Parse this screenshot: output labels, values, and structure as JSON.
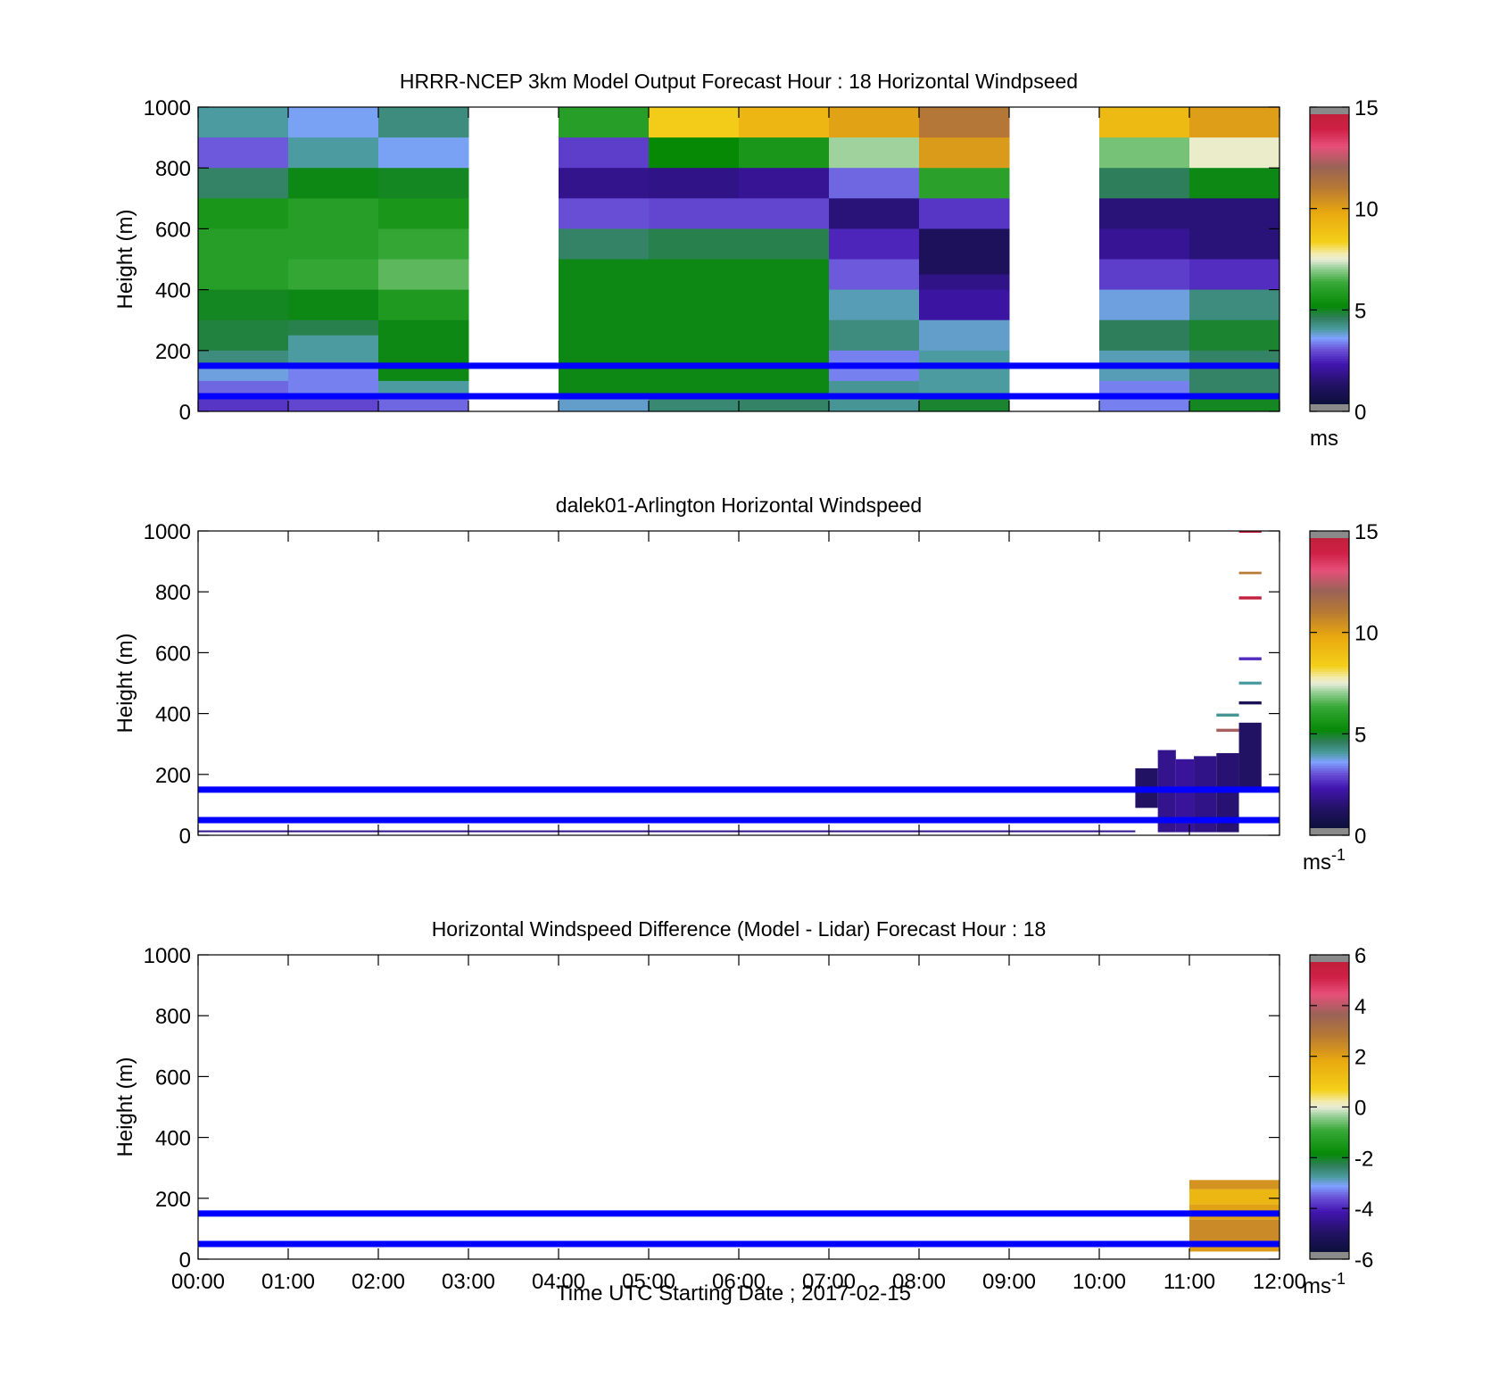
{
  "figure": {
    "xlabel": "Time UTC  Starting Date ; 2017-02-15",
    "time_ticks": [
      "00:00",
      "01:00",
      "02:00",
      "03:00",
      "04:00",
      "05:00",
      "06:00",
      "07:00",
      "08:00",
      "09:00",
      "10:00",
      "11:00",
      "12:00"
    ]
  },
  "chart_data": [
    {
      "type": "heatmap",
      "title": "HRRR-NCEP 3km Model Output   Forecast Hour : 18 Horizontal Windpseed",
      "ylabel": "Height (m)",
      "ylim": [
        0,
        1000
      ],
      "y_ticks": [
        0,
        200,
        400,
        600,
        800,
        1000
      ],
      "xlim_hours": [
        0,
        12
      ],
      "reference_heights_m": [
        150,
        50
      ],
      "reference_line_color": "#0000ff",
      "colorbar": {
        "min": 0,
        "max": 15,
        "ticks": [
          0,
          5,
          10,
          15
        ],
        "unit": "ms",
        "unit_sup": ""
      },
      "columns": [
        {
          "t0": 0,
          "t1": 1,
          "cells": [
            {
              "z0": 900,
              "z1": 1000,
              "v": 3.9
            },
            {
              "z0": 800,
              "z1": 900,
              "v": 2.9
            },
            {
              "z0": 700,
              "z1": 800,
              "v": 4.4
            },
            {
              "z0": 600,
              "z1": 700,
              "v": 5.6
            },
            {
              "z0": 400,
              "z1": 600,
              "v": 5.9
            },
            {
              "z0": 300,
              "z1": 400,
              "v": 4.9
            },
            {
              "z0": 200,
              "z1": 300,
              "v": 4.7
            },
            {
              "z0": 150,
              "z1": 200,
              "v": 4.2
            },
            {
              "z0": 100,
              "z1": 150,
              "v": 3.6
            },
            {
              "z0": 50,
              "z1": 100,
              "v": 3.0
            },
            {
              "z0": 0,
              "z1": 50,
              "v": 2.5
            }
          ]
        },
        {
          "t0": 1,
          "t1": 2,
          "cells": [
            {
              "z0": 900,
              "z1": 1000,
              "v": 3.5
            },
            {
              "z0": 800,
              "z1": 900,
              "v": 3.9
            },
            {
              "z0": 700,
              "z1": 800,
              "v": 5.0
            },
            {
              "z0": 500,
              "z1": 700,
              "v": 5.9
            },
            {
              "z0": 400,
              "z1": 500,
              "v": 6.2
            },
            {
              "z0": 300,
              "z1": 400,
              "v": 5.0
            },
            {
              "z0": 250,
              "z1": 300,
              "v": 4.6
            },
            {
              "z0": 150,
              "z1": 250,
              "v": 3.9
            },
            {
              "z0": 50,
              "z1": 150,
              "v": 3.2
            },
            {
              "z0": 0,
              "z1": 50,
              "v": 2.7
            }
          ]
        },
        {
          "t0": 2,
          "t1": 3,
          "cells": [
            {
              "z0": 900,
              "z1": 1000,
              "v": 4.2
            },
            {
              "z0": 800,
              "z1": 900,
              "v": 3.5
            },
            {
              "z0": 700,
              "z1": 800,
              "v": 4.9
            },
            {
              "z0": 600,
              "z1": 700,
              "v": 5.6
            },
            {
              "z0": 500,
              "z1": 600,
              "v": 6.2
            },
            {
              "z0": 400,
              "z1": 500,
              "v": 6.6
            },
            {
              "z0": 300,
              "z1": 400,
              "v": 5.7
            },
            {
              "z0": 100,
              "z1": 300,
              "v": 5.0
            },
            {
              "z0": 50,
              "z1": 100,
              "v": 3.9
            },
            {
              "z0": 0,
              "z1": 50,
              "v": 3.0
            }
          ]
        },
        {
          "t0": 3,
          "t1": 4,
          "cells": []
        },
        {
          "t0": 4,
          "t1": 5,
          "cells": [
            {
              "z0": 900,
              "z1": 1000,
              "v": 5.9
            },
            {
              "z0": 800,
              "z1": 900,
              "v": 2.6
            },
            {
              "z0": 700,
              "z1": 800,
              "v": 1.6
            },
            {
              "z0": 600,
              "z1": 700,
              "v": 2.8
            },
            {
              "z0": 500,
              "z1": 600,
              "v": 4.4
            },
            {
              "z0": 50,
              "z1": 500,
              "v": 5.0
            },
            {
              "z0": 0,
              "z1": 50,
              "v": 3.7
            }
          ]
        },
        {
          "t0": 5,
          "t1": 6,
          "cells": [
            {
              "z0": 900,
              "z1": 1000,
              "v": 8.6
            },
            {
              "z0": 800,
              "z1": 900,
              "v": 5.1
            },
            {
              "z0": 700,
              "z1": 800,
              "v": 1.5
            },
            {
              "z0": 600,
              "z1": 700,
              "v": 2.7
            },
            {
              "z0": 500,
              "z1": 600,
              "v": 4.6
            },
            {
              "z0": 50,
              "z1": 500,
              "v": 5.0
            },
            {
              "z0": 0,
              "z1": 50,
              "v": 4.3
            }
          ]
        },
        {
          "t0": 6,
          "t1": 7,
          "cells": [
            {
              "z0": 900,
              "z1": 1000,
              "v": 9.4
            },
            {
              "z0": 800,
              "z1": 900,
              "v": 5.6
            },
            {
              "z0": 700,
              "z1": 800,
              "v": 1.7
            },
            {
              "z0": 600,
              "z1": 700,
              "v": 2.7
            },
            {
              "z0": 500,
              "z1": 600,
              "v": 4.6
            },
            {
              "z0": 50,
              "z1": 500,
              "v": 5.0
            },
            {
              "z0": 0,
              "z1": 50,
              "v": 4.4
            }
          ]
        },
        {
          "t0": 7,
          "t1": 8,
          "cells": [
            {
              "z0": 900,
              "z1": 1000,
              "v": 10.1
            },
            {
              "z0": 800,
              "z1": 900,
              "v": 7.1
            },
            {
              "z0": 700,
              "z1": 800,
              "v": 3.0
            },
            {
              "z0": 600,
              "z1": 700,
              "v": 1.3
            },
            {
              "z0": 500,
              "z1": 600,
              "v": 2.3
            },
            {
              "z0": 400,
              "z1": 500,
              "v": 2.9
            },
            {
              "z0": 300,
              "z1": 400,
              "v": 3.8
            },
            {
              "z0": 200,
              "z1": 300,
              "v": 4.2
            },
            {
              "z0": 100,
              "z1": 200,
              "v": 3.2
            },
            {
              "z0": 0,
              "z1": 100,
              "v": 4.0
            }
          ]
        },
        {
          "t0": 8,
          "t1": 9,
          "cells": [
            {
              "z0": 900,
              "z1": 1000,
              "v": 11.3
            },
            {
              "z0": 800,
              "z1": 900,
              "v": 10.3
            },
            {
              "z0": 700,
              "z1": 800,
              "v": 6.0
            },
            {
              "z0": 600,
              "z1": 700,
              "v": 2.5
            },
            {
              "z0": 450,
              "z1": 600,
              "v": 0.8
            },
            {
              "z0": 400,
              "z1": 450,
              "v": 1.5
            },
            {
              "z0": 300,
              "z1": 400,
              "v": 1.9
            },
            {
              "z0": 200,
              "z1": 300,
              "v": 3.7
            },
            {
              "z0": 50,
              "z1": 200,
              "v": 3.9
            },
            {
              "z0": 0,
              "z1": 50,
              "v": 4.8
            }
          ]
        },
        {
          "t0": 9,
          "t1": 10,
          "cells": []
        },
        {
          "t0": 10,
          "t1": 11,
          "cells": [
            {
              "z0": 900,
              "z1": 1000,
              "v": 9.3
            },
            {
              "z0": 800,
              "z1": 900,
              "v": 6.8
            },
            {
              "z0": 700,
              "z1": 800,
              "v": 4.5
            },
            {
              "z0": 600,
              "z1": 700,
              "v": 1.3
            },
            {
              "z0": 500,
              "z1": 600,
              "v": 1.7
            },
            {
              "z0": 400,
              "z1": 500,
              "v": 2.6
            },
            {
              "z0": 300,
              "z1": 400,
              "v": 3.6
            },
            {
              "z0": 200,
              "z1": 300,
              "v": 4.5
            },
            {
              "z0": 100,
              "z1": 200,
              "v": 3.8
            },
            {
              "z0": 0,
              "z1": 100,
              "v": 3.2
            }
          ]
        },
        {
          "t0": 11,
          "t1": 12,
          "cells": [
            {
              "z0": 900,
              "z1": 1000,
              "v": 10.2
            },
            {
              "z0": 800,
              "z1": 900,
              "v": 7.6
            },
            {
              "z0": 700,
              "z1": 800,
              "v": 5.0
            },
            {
              "z0": 500,
              "z1": 700,
              "v": 1.3
            },
            {
              "z0": 400,
              "z1": 500,
              "v": 2.4
            },
            {
              "z0": 300,
              "z1": 400,
              "v": 4.2
            },
            {
              "z0": 200,
              "z1": 300,
              "v": 4.8
            },
            {
              "z0": 50,
              "z1": 200,
              "v": 4.4
            },
            {
              "z0": 0,
              "z1": 50,
              "v": 4.9
            }
          ]
        }
      ]
    },
    {
      "type": "heatmap",
      "title": "dalek01-Arlington  Horizontal Windspeed",
      "ylabel": "Height (m)",
      "ylim": [
        0,
        1000
      ],
      "y_ticks": [
        0,
        200,
        400,
        600,
        800,
        1000
      ],
      "xlim_hours": [
        0,
        12
      ],
      "reference_heights_m": [
        150,
        50
      ],
      "reference_line_color": "#0000ff",
      "colorbar": {
        "min": 0,
        "max": 15,
        "ticks": [
          0,
          5,
          10,
          15
        ],
        "unit": "ms",
        "unit_sup": "-1"
      },
      "cells": [
        {
          "t0": 0,
          "t1": 10.4,
          "z0": 10,
          "z1": 16,
          "v": 1.6
        },
        {
          "t0": 10.4,
          "t1": 10.65,
          "z0": 90,
          "z1": 220,
          "v": 1.0
        },
        {
          "t0": 10.65,
          "t1": 10.85,
          "z0": 10,
          "z1": 280,
          "v": 1.6
        },
        {
          "t0": 10.85,
          "t1": 11.05,
          "z0": 10,
          "z1": 250,
          "v": 1.8
        },
        {
          "t0": 11.05,
          "t1": 11.3,
          "z0": 10,
          "z1": 260,
          "v": 1.5
        },
        {
          "t0": 11.3,
          "t1": 11.55,
          "z0": 10,
          "z1": 270,
          "v": 1.2
        },
        {
          "t0": 11.55,
          "t1": 11.8,
          "z0": 150,
          "z1": 370,
          "v": 1.0
        },
        {
          "t0": 11.3,
          "t1": 11.55,
          "z0": 390,
          "z1": 400,
          "v": 4.0
        },
        {
          "t0": 11.3,
          "t1": 11.55,
          "z0": 340,
          "z1": 350,
          "v": 12.5
        },
        {
          "t0": 11.55,
          "t1": 11.8,
          "z0": 430,
          "z1": 440,
          "v": 0.6
        },
        {
          "t0": 11.55,
          "t1": 11.8,
          "z0": 495,
          "z1": 505,
          "v": 3.9
        },
        {
          "t0": 11.55,
          "t1": 11.8,
          "z0": 575,
          "z1": 585,
          "v": 2.4
        },
        {
          "t0": 11.55,
          "t1": 11.8,
          "z0": 775,
          "z1": 785,
          "v": 16.0
        },
        {
          "t0": 11.55,
          "t1": 11.8,
          "z0": 858,
          "z1": 866,
          "v": 11.2
        },
        {
          "t0": 11.55,
          "t1": 11.8,
          "z0": 995,
          "z1": 1000,
          "v": 16.0
        }
      ]
    },
    {
      "type": "heatmap",
      "title": "Horizontal Windspeed Difference (Model - Lidar) Forecast Hour : 18",
      "ylabel": "Height (m)",
      "ylim": [
        0,
        1000
      ],
      "y_ticks": [
        0,
        200,
        400,
        600,
        800,
        1000
      ],
      "xlim_hours": [
        0,
        12
      ],
      "reference_heights_m": [
        150,
        50
      ],
      "reference_line_color": "#0000ff",
      "colorbar": {
        "min": -6,
        "max": 6,
        "ticks": [
          -6,
          -4,
          -2,
          0,
          2,
          4,
          6
        ],
        "unit": "ms",
        "unit_sup": "-1"
      },
      "cells": [
        {
          "t0": 11,
          "t1": 12,
          "z0": 230,
          "z1": 260,
          "v": 2.4
        },
        {
          "t0": 11,
          "t1": 12,
          "z0": 180,
          "z1": 230,
          "v": 1.5
        },
        {
          "t0": 11,
          "t1": 12,
          "z0": 130,
          "z1": 180,
          "v": 2.1
        },
        {
          "t0": 11,
          "t1": 12,
          "z0": 60,
          "z1": 130,
          "v": 2.6
        },
        {
          "t0": 11,
          "t1": 12,
          "z0": 25,
          "z1": 60,
          "v": 2.2
        }
      ]
    }
  ]
}
